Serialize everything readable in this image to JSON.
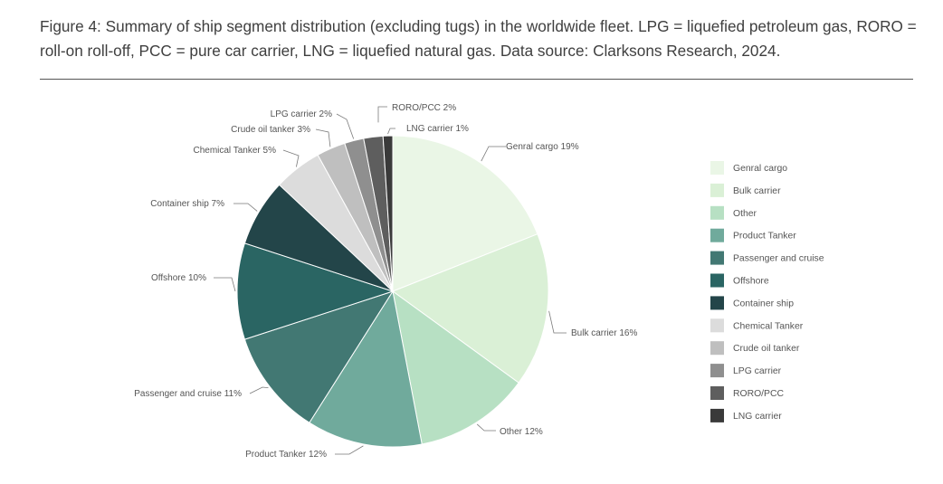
{
  "figure": {
    "caption": "Figure 4: Summary of ship segment distribution (excluding tugs) in the worldwide fleet. LPG = liquefied petroleum gas, RORO = roll-on roll-off, PCC = pure car carrier, LNG = liquefied natural gas. Data source: Clarksons Research, 2024."
  },
  "chart_data": {
    "type": "pie",
    "title": "",
    "start_angle_deg": 0,
    "direction": "clockwise",
    "legend_position": "right",
    "categories": [
      "Genral cargo",
      "Bulk carrier",
      "Other",
      "Product Tanker",
      "Passenger and cruise",
      "Offshore",
      "Container ship",
      "Chemical Tanker",
      "Crude oil tanker",
      "LPG carrier",
      "RORO/PCC",
      "LNG carrier"
    ],
    "values": [
      19,
      16,
      12,
      12,
      11,
      10,
      7,
      5,
      3,
      2,
      2,
      1
    ],
    "unit": "%",
    "slice_labels": [
      "Genral cargo 19%",
      "Bulk carrier 16%",
      "Other 12%",
      "Product Tanker 12%",
      "Passenger and cruise 11%",
      "Offshore 10%",
      "Container ship 7%",
      "Chemical Tanker 5%",
      "Crude oil tanker 3%",
      "LPG carrier 2%",
      "RORO/PCC 2%",
      "LNG carrier 1%"
    ],
    "colors": [
      "#eaf6e6",
      "#daf0d6",
      "#b7e0c3",
      "#70aa9c",
      "#427873",
      "#2a6563",
      "#234549",
      "#dcdcdc",
      "#bfbfbf",
      "#8f8f8f",
      "#5e5e5e",
      "#3a3a3a"
    ]
  }
}
